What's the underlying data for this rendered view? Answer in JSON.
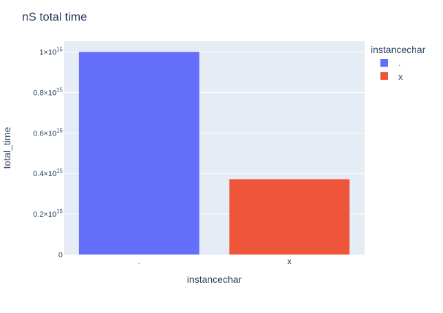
{
  "chart_data": {
    "type": "bar",
    "title": "nS total time",
    "xlabel": "instancechar",
    "ylabel": "total_time",
    "categories": [
      ".",
      "x"
    ],
    "values": [
      1000000000000000.0,
      372000000000000.0
    ],
    "bar_colors": [
      "#636efa",
      "#ef553b"
    ],
    "ylim": [
      0,
      1053000000000000.0
    ],
    "yticks": [
      {
        "value": 0,
        "mantissa": "0",
        "exp": ""
      },
      {
        "value": 200000000000000.0,
        "mantissa": "0.2×10",
        "exp": "15"
      },
      {
        "value": 400000000000000.0,
        "mantissa": "0.4×10",
        "exp": "15"
      },
      {
        "value": 600000000000000.0,
        "mantissa": "0.6×10",
        "exp": "15"
      },
      {
        "value": 800000000000000.0,
        "mantissa": "0.8×10",
        "exp": "15"
      },
      {
        "value": 1000000000000000.0,
        "mantissa": "1×10",
        "exp": "15"
      }
    ],
    "legend": {
      "title": "instancechar",
      "placement": "right",
      "items": [
        {
          "label": ".",
          "color": "#636efa"
        },
        {
          "label": "x",
          "color": "#ef553b"
        }
      ]
    },
    "grid": true,
    "plot_background": "#e5ecf6",
    "text_color": "#2a3f5f"
  }
}
